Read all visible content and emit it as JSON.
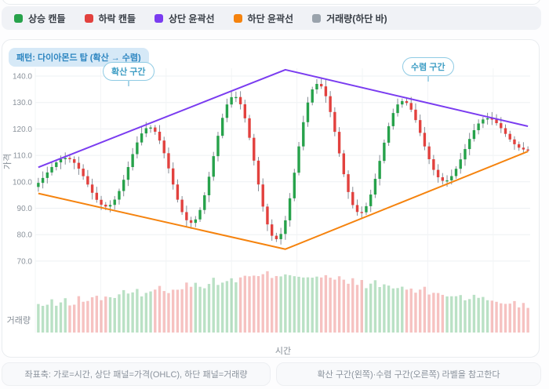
{
  "legend": {
    "items": [
      {
        "label": "상승 캔들",
        "color": "#27a24b",
        "icon": "up-candle-swatch"
      },
      {
        "label": "하락 캔들",
        "color": "#e2413e",
        "icon": "down-candle-swatch"
      },
      {
        "label": "상단 윤곽선",
        "color": "#7a3cf0",
        "icon": "upper-outline-swatch"
      },
      {
        "label": "하단 윤곽선",
        "color": "#f5830e",
        "icon": "lower-outline-swatch"
      },
      {
        "label": "거래량(하단 바)",
        "color": "#9aa3ac",
        "icon": "volume-swatch"
      }
    ]
  },
  "pattern_badge": {
    "label": "패턴: 다이아몬드 탑 (확산 → 수렴)"
  },
  "annotations": {
    "left": "확산 구간",
    "right": "수렴 구간"
  },
  "footer": {
    "left": "좌표축: 가로=시간, 상단 패널=가격(OHLC), 하단 패널=거래량",
    "right": "확산 구간(왼쪽)·수렴 구간(오른쪽) 라벨을 참고한다"
  },
  "chart_data": {
    "type": "candlestick",
    "title": "다이아몬드 탑 (확산 → 수렴)",
    "xlabel": "시간",
    "price_axis_label": "가격",
    "volume_axis_label": "거래량",
    "y_ticks": [
      140,
      130,
      120,
      110,
      100,
      90,
      80,
      70
    ],
    "ylim": [
      68,
      144
    ],
    "grid": true,
    "legend_position": "top-bar",
    "colors": {
      "up": "#27a24b",
      "down": "#e2413e",
      "wick": "#868d96",
      "upper_outline": "#7a3cf0",
      "lower_outline": "#f5830e",
      "grid_h": "#edf0f3",
      "grid_v": "#f2f4f6",
      "volume_opacity": 0.32
    },
    "upper_outline_points": [
      {
        "i": 0,
        "price": 105.5
      },
      {
        "i": 55,
        "price": 142.4
      },
      {
        "i": 109,
        "price": 121.0
      }
    ],
    "lower_outline_points": [
      {
        "i": 0,
        "price": 95.6
      },
      {
        "i": 55,
        "price": 74.5
      },
      {
        "i": 109,
        "price": 111.5
      }
    ],
    "wave_peaks": [
      {
        "i": 5,
        "price": 108.7
      },
      {
        "i": 24,
        "price": 120.1
      },
      {
        "i": 43,
        "price": 131.6
      },
      {
        "i": 62,
        "price": 136.5
      },
      {
        "i": 81,
        "price": 129.7
      },
      {
        "i": 100,
        "price": 124.0
      }
    ],
    "wave_troughs": [
      {
        "i": 15,
        "price": 90.9
      },
      {
        "i": 34,
        "price": 85.1
      },
      {
        "i": 53,
        "price": 77.3
      },
      {
        "i": 72,
        "price": 89.1
      },
      {
        "i": 91,
        "price": 100.5
      },
      {
        "i": 109,
        "price": 112.2
      }
    ],
    "candles_model": {
      "n": 110,
      "center_start": 100.5,
      "center_end": 116.5,
      "amp_start": 5,
      "amp_mid": 31,
      "amp_end": 4.5,
      "mid": 55,
      "wavelength": 19,
      "phase_offset": 0.55,
      "wick_min": 0.9,
      "wick_rand": 1.7,
      "seed": 42
    },
    "volume_model": {
      "base": 45,
      "peak": 100,
      "noise": 8,
      "seed": 13
    }
  }
}
